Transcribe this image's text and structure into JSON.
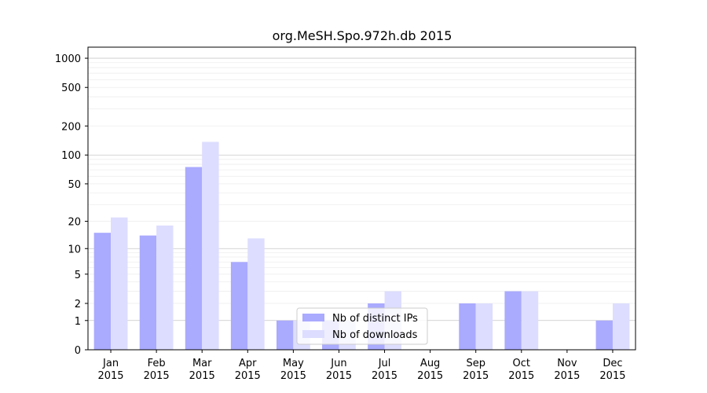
{
  "chart_data": {
    "type": "bar",
    "title": "org.MeSH.Spo.972h.db 2015",
    "xlabel": "",
    "ylabel": "",
    "y_scale": "symlog",
    "ylim": [
      0,
      1300
    ],
    "grid": true,
    "legend_position": "bottom-center",
    "categories": [
      [
        "Jan",
        "2015"
      ],
      [
        "Feb",
        "2015"
      ],
      [
        "Mar",
        "2015"
      ],
      [
        "Apr",
        "2015"
      ],
      [
        "May",
        "2015"
      ],
      [
        "Jun",
        "2015"
      ],
      [
        "Jul",
        "2015"
      ],
      [
        "Aug",
        "2015"
      ],
      [
        "Sep",
        "2015"
      ],
      [
        "Oct",
        "2015"
      ],
      [
        "Nov",
        "2015"
      ],
      [
        "Dec",
        "2015"
      ]
    ],
    "y_ticks": [
      0,
      1,
      2,
      5,
      10,
      20,
      50,
      100,
      200,
      500,
      1000
    ],
    "y_tick_labels": [
      "0",
      "1",
      "2",
      "5",
      "10",
      "20",
      "50",
      "100",
      "200",
      "500",
      "1000"
    ],
    "series": [
      {
        "name": "Nb of distinct IPs",
        "color": "#aaaaff",
        "values": [
          15,
          14,
          75,
          7,
          1,
          1,
          2,
          0,
          2,
          3,
          0,
          1
        ]
      },
      {
        "name": "Nb of downloads",
        "color": "#ddddff",
        "values": [
          22,
          18,
          137,
          13,
          1,
          1,
          3,
          0,
          2,
          3,
          0,
          2
        ]
      }
    ]
  }
}
